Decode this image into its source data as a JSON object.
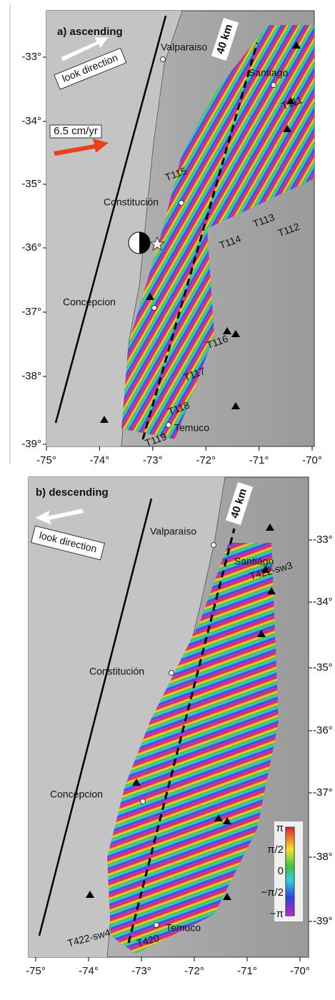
{
  "panel_a": {
    "title": "a) ascending",
    "look_label": "look direction",
    "velocity_label": "6.5 cm/yr",
    "distance_label": "40 km",
    "places": [
      "Valparaiso",
      "Santiago",
      "Constitución",
      "Concepcion",
      "Temuco"
    ],
    "tracks": [
      "T111",
      "T112",
      "T113",
      "T114",
      "T115",
      "T116",
      "T117",
      "T118",
      "T119"
    ],
    "lat_ticks": [
      "-33°",
      "-34°",
      "-35°",
      "-36°",
      "-37°",
      "-38°",
      "-39°"
    ],
    "lon_ticks": [
      "-75°",
      "-74°",
      "-73°",
      "-72°",
      "-71°",
      "-70°"
    ]
  },
  "panel_b": {
    "title": "b) descending",
    "look_label": "look direction",
    "distance_label": "40 km",
    "places": [
      "Valparaiso",
      "Santiago",
      "Constitución",
      "Concepcion",
      "Temuco"
    ],
    "tracks": [
      "T422-sw3",
      "T420",
      "T422-sw4"
    ],
    "lat_ticks": [
      "-33°",
      "-34°",
      "-35°",
      "-36°",
      "-37°",
      "-38°",
      "-39°"
    ],
    "lon_ticks": [
      "-75°",
      "-74°",
      "-73°",
      "-72°",
      "-71°",
      "-70°"
    ],
    "colorbar_labels": [
      "π",
      "π/2",
      "0",
      "−π/2",
      "−π"
    ]
  }
}
